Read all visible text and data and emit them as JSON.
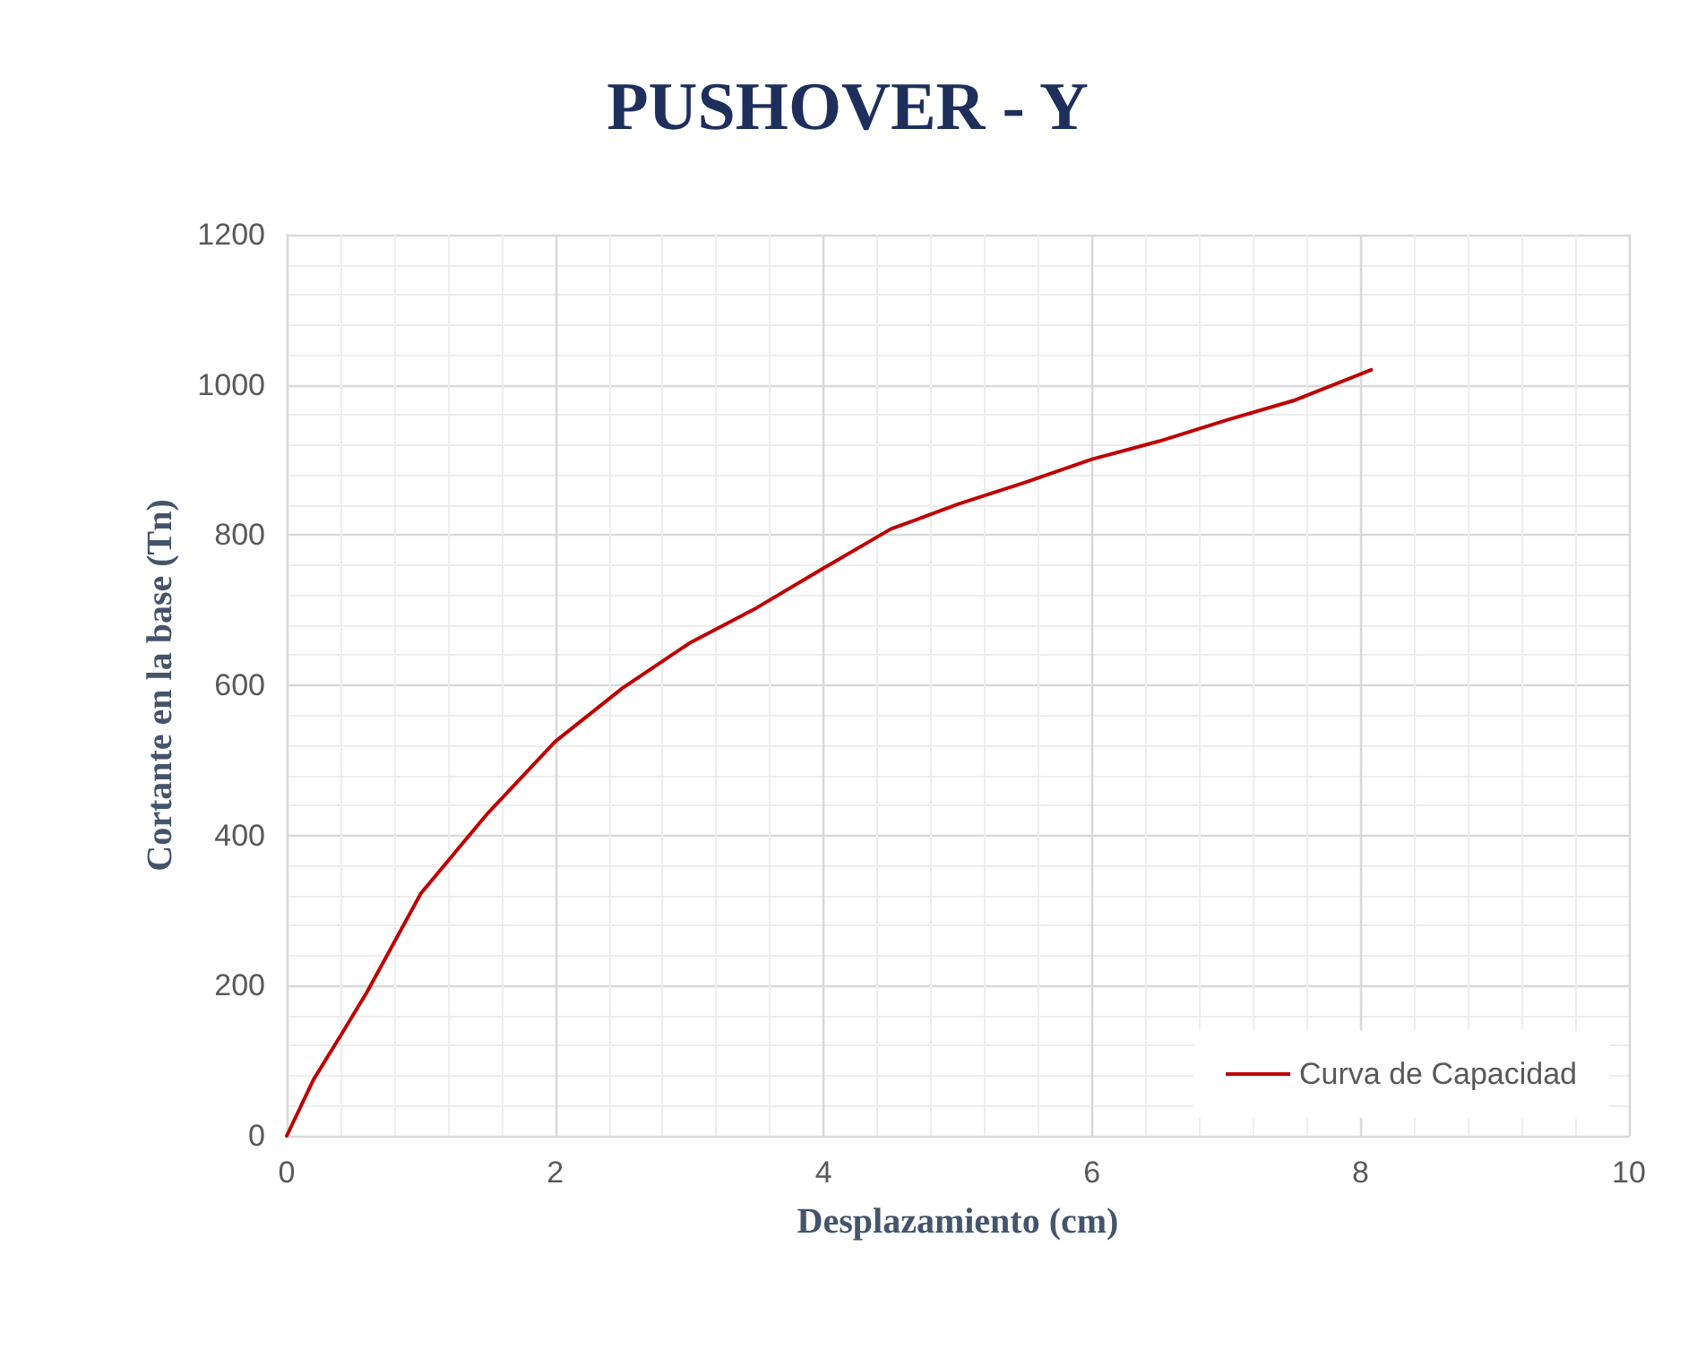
{
  "chart_data": {
    "type": "line",
    "title": "PUSHOVER - Y",
    "xlabel": "Desplazamiento (cm)",
    "ylabel": "Cortante en la base (Tn)",
    "xlim": [
      0,
      10
    ],
    "xticks": [
      0,
      2,
      4,
      6,
      8,
      10
    ],
    "ylim": [
      0,
      1200
    ],
    "yticks": [
      0,
      200,
      400,
      600,
      800,
      1000,
      1200
    ],
    "grid": true,
    "legend": "bottom right",
    "marker": "none",
    "line_style": "solid",
    "series": [
      {
        "name": "Curva de Capacidad",
        "color": "#c00000",
        "x": [
          0,
          0.2,
          0.4,
          0.6,
          1,
          1.5,
          2,
          2.5,
          3,
          3.5,
          4,
          4.5,
          5,
          5.5,
          6,
          6.5,
          7,
          7.5,
          8.08
        ],
        "values": [
          0,
          75,
          133,
          192,
          323,
          430,
          525,
          596,
          656,
          703,
          756,
          808,
          841,
          870,
          901,
          925,
          953,
          979,
          1020
        ]
      }
    ]
  }
}
